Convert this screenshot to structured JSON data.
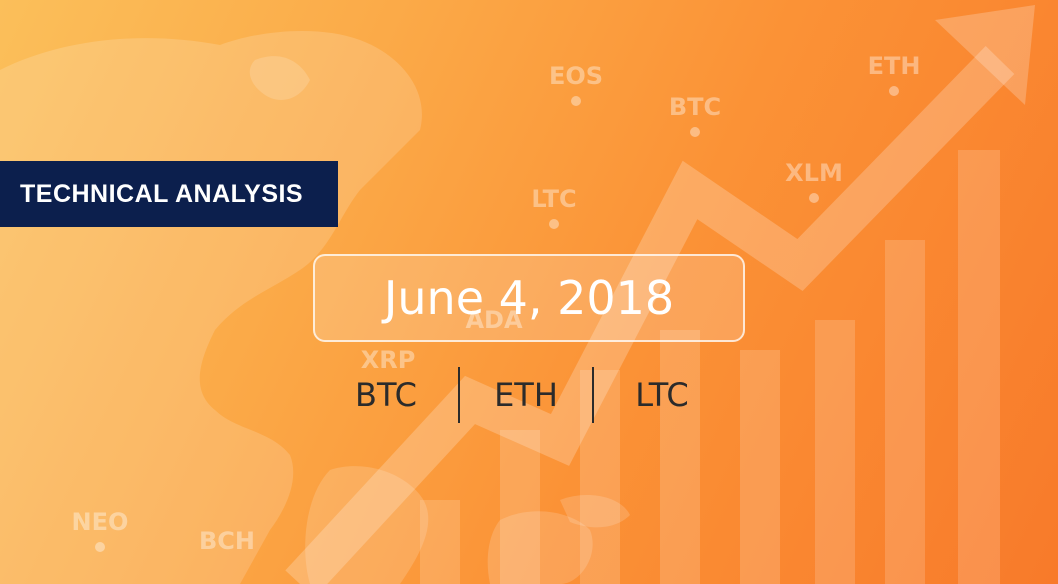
{
  "banner": {
    "label": "TECHNICAL ANALYSIS"
  },
  "date": "June 4, 2018",
  "coins": [
    "BTC",
    "ETH",
    "LTC"
  ],
  "bg_tags": [
    "EOS",
    "BTC",
    "ETH",
    "XLM",
    "LTC",
    "ADA",
    "XRP",
    "NEO",
    "BCH"
  ],
  "colors": {
    "banner_bg": "#0c1f4d",
    "bg_start": "#fbbf5a",
    "bg_end": "#f87a2a",
    "text_dark": "#2b2b2b"
  }
}
